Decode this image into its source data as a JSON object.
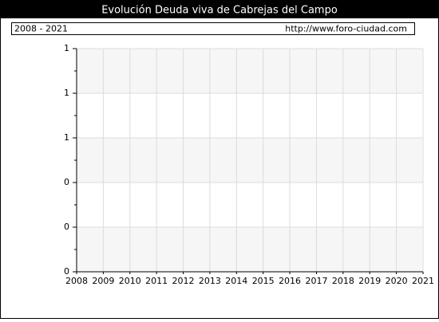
{
  "chart_data": {
    "type": "line",
    "title": "Evolución Deuda viva de Cabrejas del Campo",
    "period": "2008 - 2021",
    "source": "http://www.foro-ciudad.com",
    "x": [],
    "series": [],
    "xlim": [
      2008,
      2021
    ],
    "xticks": [
      2008,
      2009,
      2010,
      2011,
      2012,
      2013,
      2014,
      2015,
      2016,
      2017,
      2018,
      2019,
      2020,
      2021
    ],
    "ylim": [
      0,
      1
    ],
    "yticks": [
      0,
      {
        "value": 0.2,
        "label": "0"
      },
      {
        "value": 0.4,
        "label": "0"
      },
      {
        "value": 0.6,
        "label": "1"
      },
      {
        "value": 0.8,
        "label": "1"
      },
      1
    ],
    "grid": true
  }
}
